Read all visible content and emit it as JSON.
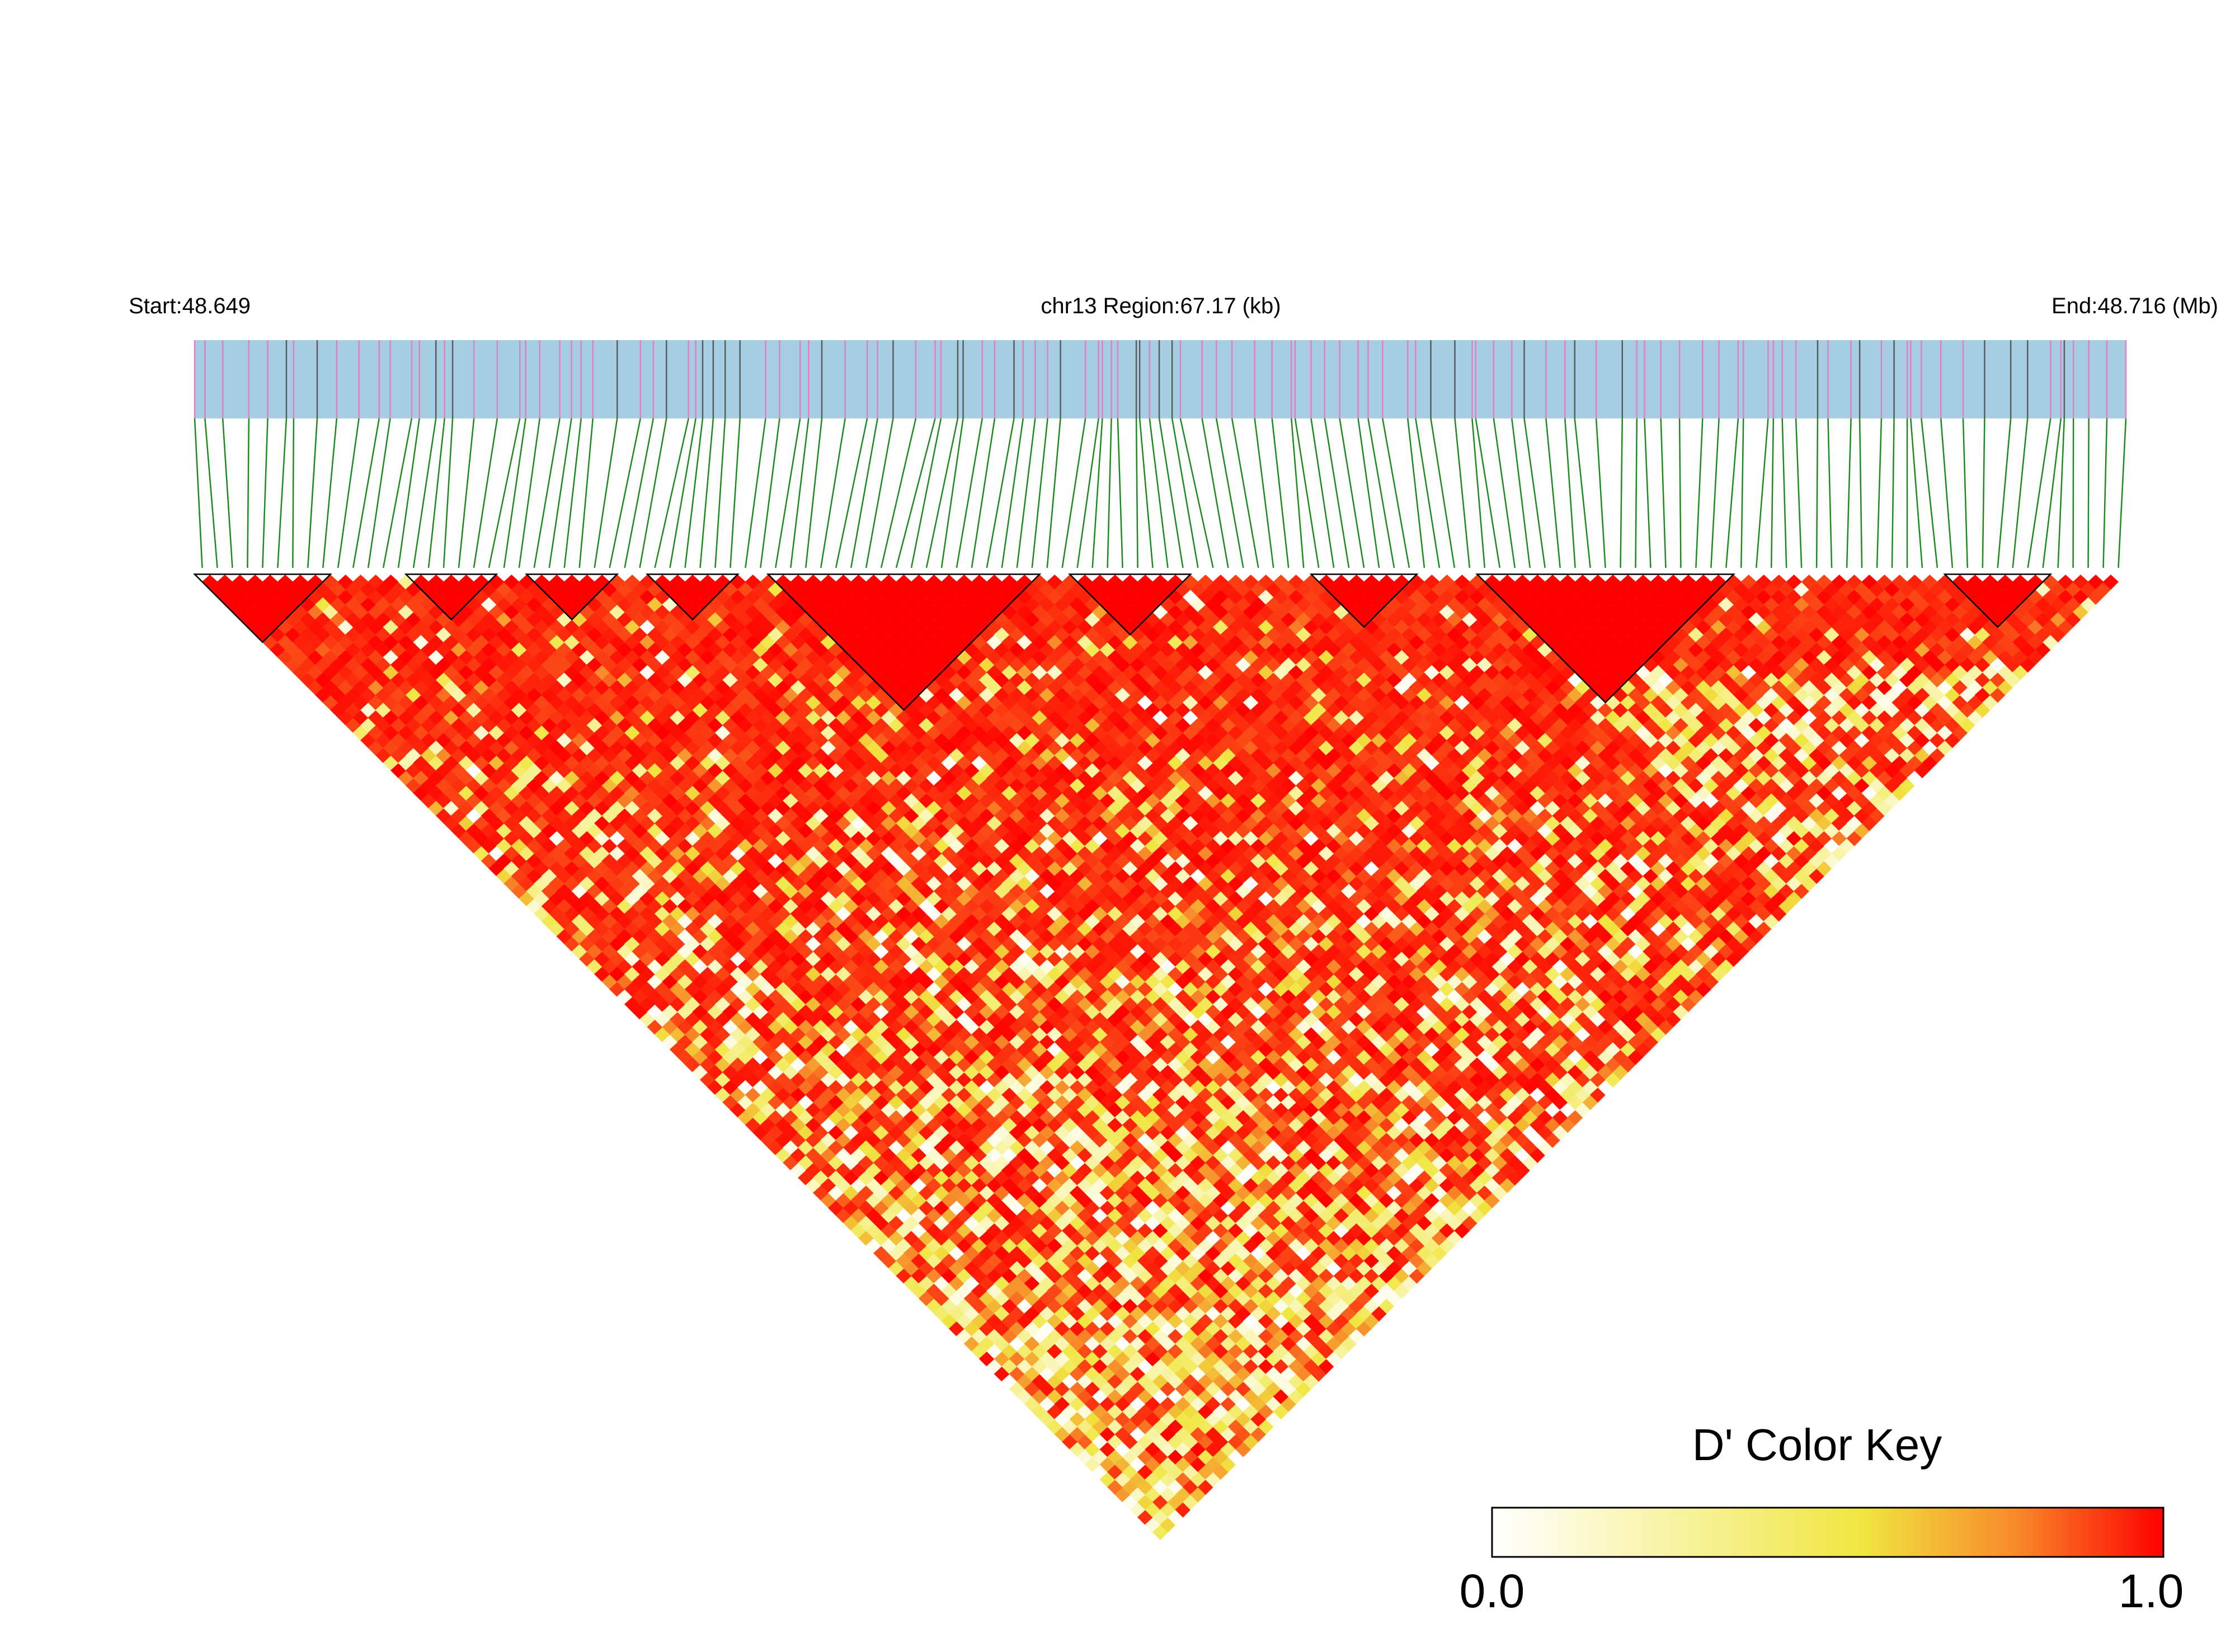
{
  "header": {
    "start_label": "Start:48.649",
    "region_label": "chr13 Region:67.17 (kb)",
    "end_label": "End:48.716 (Mb)"
  },
  "colors": {
    "track_fill": "#a6cee3",
    "snp_tick": "#e17fc7",
    "snp_tick_dark": "#5b5b5b",
    "connector": "#1c8a1c",
    "block_outline": "#000000",
    "key_low": "#ffffff",
    "key_mid": "#f0e641",
    "key_high": "#ff0000"
  },
  "chart_data": {
    "type": "heatmap",
    "title": "",
    "description_of_layout": "",
    "chromosome": "chr13",
    "region_start_mb": 48.649,
    "region_end_mb": 48.716,
    "region_length_kb": 67.17,
    "snp_count": 128,
    "ld_blocks_snp_ranges": [
      [
        0,
        8
      ],
      [
        14,
        19
      ],
      [
        22,
        27
      ],
      [
        30,
        35
      ],
      [
        38,
        55
      ],
      [
        58,
        65
      ],
      [
        74,
        80
      ],
      [
        85,
        101
      ],
      [
        116,
        122
      ]
    ],
    "value_range": [
      0.0,
      1.0
    ],
    "notes": "Triangular pairwise LD plot, D' per SNP pair; values mostly high (red) near diagonal and mixed yellow/white toward the bottom apex."
  },
  "color_key": {
    "title": "D' Color Key",
    "min_label": "0.0",
    "max_label": "1.0"
  }
}
